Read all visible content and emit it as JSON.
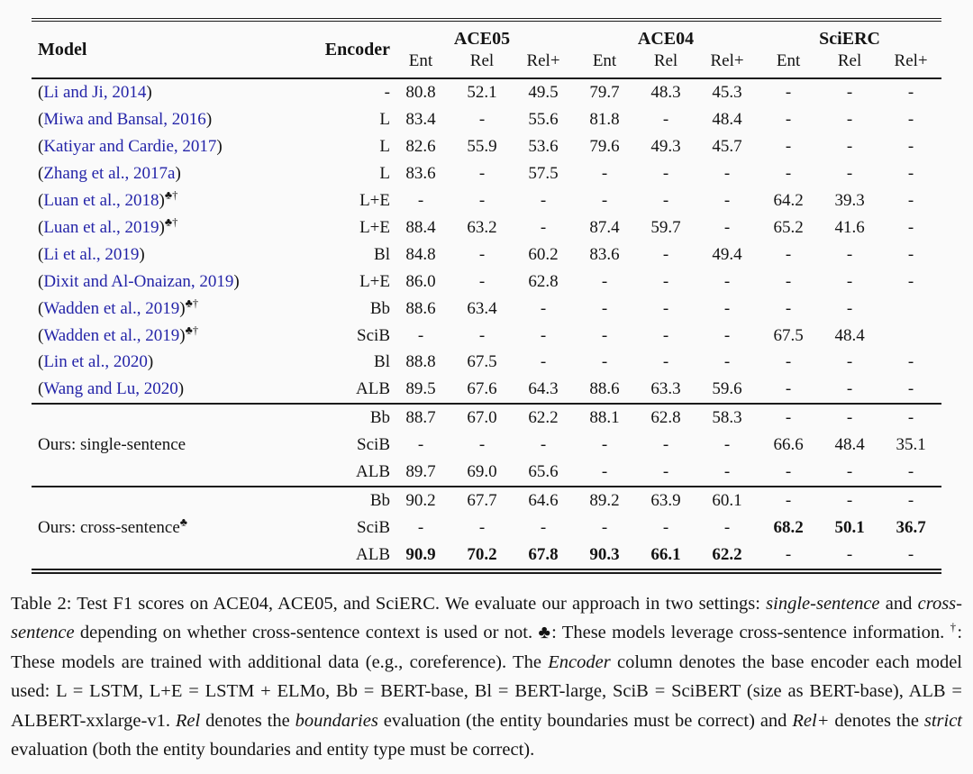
{
  "colors": {
    "background": "#fafafa",
    "text": "#141414",
    "citation_link": "#2424a8",
    "rule": "#1b1b1b",
    "bottom_strip": "#e9e9ea"
  },
  "table": {
    "groups": [
      {
        "label": "ACE05"
      },
      {
        "label": "ACE04"
      },
      {
        "label": "SciERC"
      }
    ],
    "header": {
      "model": "Model",
      "encoder": "Encoder",
      "metrics": [
        "Ent",
        "Rel",
        "Rel+"
      ]
    },
    "citation_rows": [
      {
        "cite": "Li and Ji, 2014",
        "marks": "",
        "encoder": "-",
        "values": [
          "80.8",
          "52.1",
          "49.5",
          "79.7",
          "48.3",
          "45.3",
          "-",
          "-",
          "-"
        ],
        "bold": []
      },
      {
        "cite": "Miwa and Bansal, 2016",
        "marks": "",
        "encoder": "L",
        "values": [
          "83.4",
          "-",
          "55.6",
          "81.8",
          "-",
          "48.4",
          "-",
          "-",
          "-"
        ],
        "bold": []
      },
      {
        "cite": "Katiyar and Cardie, 2017",
        "marks": "",
        "encoder": "L",
        "values": [
          "82.6",
          "55.9",
          "53.6",
          "79.6",
          "49.3",
          "45.7",
          "-",
          "-",
          "-"
        ],
        "bold": []
      },
      {
        "cite": "Zhang et al., 2017a",
        "marks": "",
        "encoder": "L",
        "values": [
          "83.6",
          "-",
          "57.5",
          "-",
          "-",
          "-",
          "-",
          "-",
          "-"
        ],
        "bold": []
      },
      {
        "cite": "Luan et al., 2018",
        "marks": "♣†",
        "encoder": "L+E",
        "values": [
          "-",
          "-",
          "-",
          "-",
          "-",
          "-",
          "64.2",
          "39.3",
          "-"
        ],
        "bold": []
      },
      {
        "cite": "Luan et al., 2019",
        "marks": "♣†",
        "encoder": "L+E",
        "values": [
          "88.4",
          "63.2",
          "-",
          "87.4",
          "59.7",
          "-",
          "65.2",
          "41.6",
          "-"
        ],
        "bold": []
      },
      {
        "cite": "Li et al., 2019",
        "marks": "",
        "encoder": "Bl",
        "values": [
          "84.8",
          "-",
          "60.2",
          "83.6",
          "-",
          "49.4",
          "-",
          "-",
          "-"
        ],
        "bold": []
      },
      {
        "cite": "Dixit and Al-Onaizan, 2019",
        "marks": "",
        "encoder": "L+E",
        "values": [
          "86.0",
          "-",
          "62.8",
          "-",
          "-",
          "-",
          "-",
          "-",
          "-"
        ],
        "bold": []
      },
      {
        "cite": "Wadden et al., 2019",
        "marks": "♣†",
        "encoder": "Bb",
        "values": [
          "88.6",
          "63.4",
          "-",
          "-",
          "-",
          "-",
          "-",
          "-",
          ""
        ],
        "bold": []
      },
      {
        "cite": "Wadden et al., 2019",
        "marks": "♣†",
        "encoder": "SciB",
        "values": [
          "-",
          "-",
          "-",
          "-",
          "-",
          "-",
          "67.5",
          "48.4",
          ""
        ],
        "bold": []
      },
      {
        "cite": "Lin et al., 2020",
        "marks": "",
        "encoder": "Bl",
        "values": [
          "88.8",
          "67.5",
          "-",
          "-",
          "-",
          "-",
          "-",
          "-",
          "-"
        ],
        "bold": []
      },
      {
        "cite": "Wang and Lu, 2020",
        "marks": "",
        "encoder": "ALB",
        "values": [
          "89.5",
          "67.6",
          "64.3",
          "88.6",
          "63.3",
          "59.6",
          "-",
          "-",
          "-"
        ],
        "bold": []
      }
    ],
    "ours_sections": [
      {
        "label": "Ours: single-sentence",
        "label_marks": "",
        "rows": [
          {
            "encoder": "Bb",
            "values": [
              "88.7",
              "67.0",
              "62.2",
              "88.1",
              "62.8",
              "58.3",
              "-",
              "-",
              "-"
            ],
            "bold": []
          },
          {
            "encoder": "SciB",
            "values": [
              "-",
              "-",
              "-",
              "-",
              "-",
              "-",
              "66.6",
              "48.4",
              "35.1"
            ],
            "bold": []
          },
          {
            "encoder": "ALB",
            "values": [
              "89.7",
              "69.0",
              "65.6",
              "-",
              "-",
              "-",
              "-",
              "-",
              "-"
            ],
            "bold": []
          }
        ]
      },
      {
        "label": "Ours: cross-sentence",
        "label_marks": "♣",
        "rows": [
          {
            "encoder": "Bb",
            "values": [
              "90.2",
              "67.7",
              "64.6",
              "89.2",
              "63.9",
              "60.1",
              "-",
              "-",
              "-"
            ],
            "bold": []
          },
          {
            "encoder": "SciB",
            "values": [
              "-",
              "-",
              "-",
              "-",
              "-",
              "-",
              "68.2",
              "50.1",
              "36.7"
            ],
            "bold": [
              6,
              7,
              8
            ]
          },
          {
            "encoder": "ALB",
            "values": [
              "90.9",
              "70.2",
              "67.8",
              "90.3",
              "66.1",
              "62.2",
              "-",
              "-",
              "-"
            ],
            "bold": [
              0,
              1,
              2,
              3,
              4,
              5
            ]
          }
        ]
      }
    ]
  },
  "caption": {
    "segments": [
      {
        "text": "Table 2: Test F1 scores on ACE04, ACE05, and SciERC. We evaluate our approach in two settings: "
      },
      {
        "text": "single-sentence",
        "italic": true
      },
      {
        "text": " and "
      },
      {
        "text": "cross-sentence",
        "italic": true
      },
      {
        "text": " depending on whether cross-sentence context is used or not. "
      },
      {
        "text": "♣"
      },
      {
        "text": ": These models leverage cross-sentence information. "
      },
      {
        "text": "†",
        "sup": true
      },
      {
        "text": ": These models are trained with additional data (e.g., coreference). The "
      },
      {
        "text": "Encoder",
        "italic": true
      },
      {
        "text": " column denotes the base encoder each model used: L = LSTM, L+E = LSTM + ELMo, Bb = BERT-base, Bl = BERT-large, SciB = SciBERT (size as BERT-base), ALB = ALBERT-xxlarge-v1. "
      },
      {
        "text": "Rel",
        "italic": true
      },
      {
        "text": " denotes the "
      },
      {
        "text": "boundaries",
        "italic": true
      },
      {
        "text": " evaluation (the entity boundaries must be correct) and "
      },
      {
        "text": "Rel+",
        "italic": true
      },
      {
        "text": " denotes the "
      },
      {
        "text": "strict",
        "italic": true
      },
      {
        "text": " evaluation (both the entity boundaries and entity type must be correct)."
      }
    ]
  }
}
